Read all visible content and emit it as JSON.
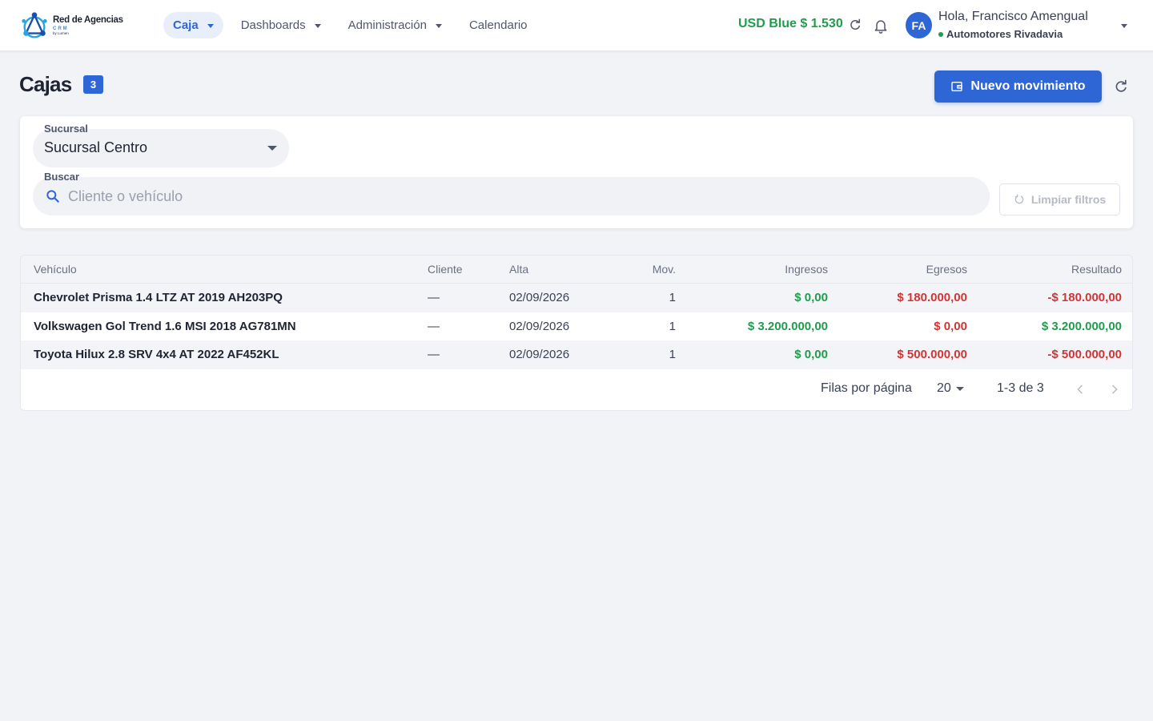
{
  "brand": {
    "title": "Red de Agencias",
    "subtitle": "CRM",
    "byline": "by Lumen"
  },
  "nav": {
    "items": [
      {
        "label": "Caja"
      },
      {
        "label": "Dashboards"
      },
      {
        "label": "Administración"
      },
      {
        "label": "Calendario"
      }
    ]
  },
  "header": {
    "usd_rate": "USD Blue $ 1.530",
    "avatar_initials": "FA",
    "greeting": "Hola, Francisco Amengual",
    "agency": "Automotores Rivadavia"
  },
  "page": {
    "title": "Cajas",
    "count": "3",
    "new_button": "Nuevo movimiento"
  },
  "filters": {
    "branch_label": "Sucursal",
    "branch_value": "Sucursal Centro",
    "search_label": "Buscar",
    "search_placeholder": "Cliente o vehículo",
    "search_value": "",
    "clear_button": "Limpiar filtros"
  },
  "table": {
    "columns": [
      "Vehículo",
      "Cliente",
      "Alta",
      "Mov.",
      "Ingresos",
      "Egresos",
      "Resultado"
    ],
    "rows": [
      {
        "vehicle": "Chevrolet Prisma 1.4 LTZ AT 2019 AH203PQ",
        "client": "—",
        "date": "02/09/2026",
        "mov": "1",
        "income": "$ 0,00",
        "expense": "$ 180.000,00",
        "result": "-$ 180.000,00"
      },
      {
        "vehicle": "Volkswagen Gol Trend 1.6 MSI 2018 AG781MN",
        "client": "—",
        "date": "02/09/2026",
        "mov": "1",
        "income": "$ 3.200.000,00",
        "expense": "$ 0,00",
        "result": "$ 3.200.000,00"
      },
      {
        "vehicle": "Toyota Hilux 2.8 SRV 4x4 AT 2022 AF452KL",
        "client": "—",
        "date": "02/09/2026",
        "mov": "1",
        "income": "$ 0,00",
        "expense": "$ 500.000,00",
        "result": "-$ 500.000,00"
      }
    ]
  },
  "pagination": {
    "rows_label": "Filas por página",
    "rows_per_page": "20",
    "range": "1-3 de 3"
  },
  "colors": {
    "primary": "#2f66d6",
    "positive": "#1f9d4d",
    "negative": "#d03535"
  },
  "icons": [
    "logo-icon",
    "refresh-icon",
    "bell-icon",
    "wallet-icon",
    "search-icon",
    "reset-icon",
    "chevron-left-icon",
    "chevron-right-icon"
  ]
}
